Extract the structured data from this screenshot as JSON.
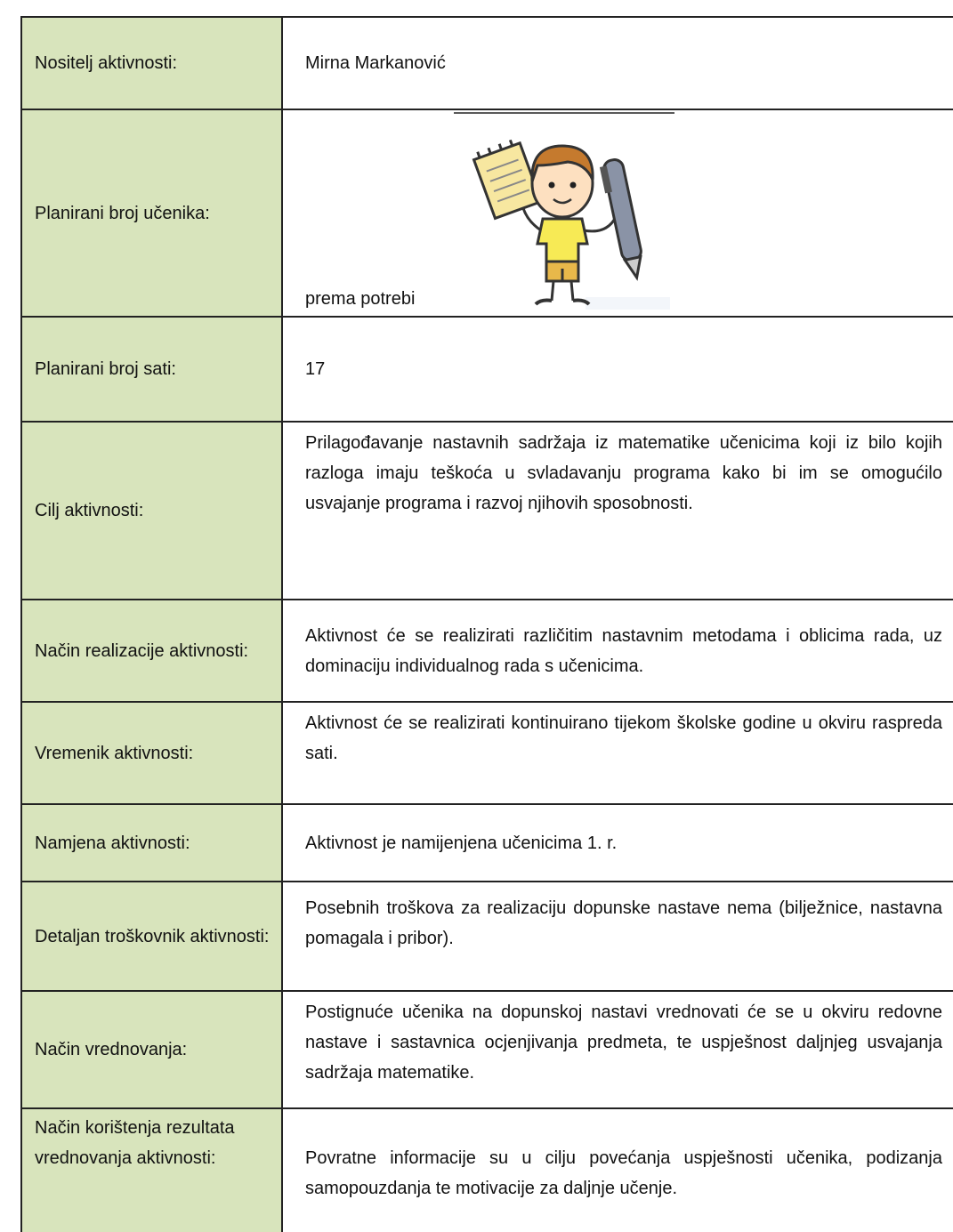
{
  "table": {
    "rows": [
      [
        "Nositelj aktivnosti:",
        "Mirna Markanović"
      ],
      [
        "Planirani broj učenika:",
        "prema potrebi"
      ],
      [
        "Planirani broj sati:",
        "17"
      ],
      [
        "Cilj aktivnosti:",
        "Prilagođavanje nastavnih sadržaja iz matematike  učenicima koji iz bilo kojih razloga imaju teškoća u svladavanju programa kako bi im se omogućilo usvajanje programa i razvoj njihovih sposobnosti."
      ],
      [
        "Način realizacije aktivnosti:",
        "Aktivnost će se realizirati različitim nastavnim metodama i oblicima rada, uz dominaciju individualnog rada s učenicima."
      ],
      [
        "Vremenik aktivnosti:",
        "Aktivnost će se realizirati kontinuirano tijekom školske godine u okviru raspreda sati."
      ],
      [
        "Namjena aktivnosti:",
        "Aktivnost je namijenjena učenicima 1. r."
      ],
      [
        "Detaljan troškovnik aktivnosti:",
        "Posebnih troškova za realizaciju dopunske nastave nema (bilježnice, nastavna pomagala i pribor)."
      ],
      [
        "Način vrednovanja:",
        "Postignuće učenika na dopunskoj nastavi vrednovati će se u okviru redovne nastave i sastavnica ocjenjivanja predmeta, te uspješnost daljnjeg usvajanja sadržaja matematike."
      ],
      [
        "Način korištenja rezultata vrednovanja aktivnosti:",
        "Povratne informacije su u cilju povećanja uspješnosti učenika, podizanja samopouzdanja te motivacije za daljnje učenje."
      ]
    ]
  }
}
